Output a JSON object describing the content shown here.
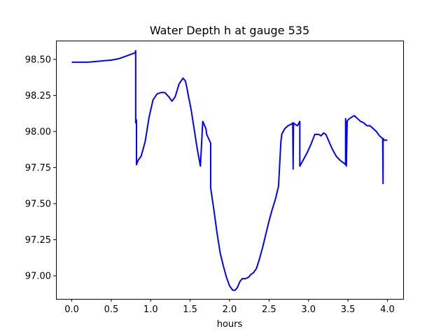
{
  "chart_data": {
    "type": "line",
    "title": "Water Depth h at gauge 535",
    "xlabel": "hours",
    "ylabel": "",
    "xlim": [
      -0.2,
      4.2
    ],
    "ylim": [
      96.84,
      98.63
    ],
    "xticks": [
      0.0,
      0.5,
      1.0,
      1.5,
      2.0,
      2.5,
      3.0,
      3.5,
      4.0
    ],
    "xtick_labels": [
      "0.0",
      "0.5",
      "1.0",
      "1.5",
      "2.0",
      "2.5",
      "3.0",
      "3.5",
      "4.0"
    ],
    "yticks": [
      97.0,
      97.25,
      97.5,
      97.75,
      98.0,
      98.25,
      98.5
    ],
    "ytick_labels": [
      "97.00",
      "97.25",
      "97.50",
      "97.75",
      "98.00",
      "98.25",
      "98.50"
    ],
    "grid": false,
    "line_color": "#0000ff",
    "series": [
      {
        "x": [
          0.0,
          0.1,
          0.2,
          0.3,
          0.4,
          0.5,
          0.6,
          0.65,
          0.7,
          0.75,
          0.8,
          0.81,
          0.81,
          0.815,
          0.815,
          0.82,
          0.82,
          0.84,
          0.88,
          0.93,
          0.98,
          1.03,
          1.08,
          1.13,
          1.18,
          1.23,
          1.27,
          1.31,
          1.36,
          1.41,
          1.44,
          1.46,
          1.48,
          1.51,
          1.55,
          1.59,
          1.63,
          1.66,
          1.7,
          1.71,
          1.76,
          1.76,
          1.8,
          1.84,
          1.88,
          1.92,
          1.96,
          2.0,
          2.04,
          2.07,
          2.1,
          2.13,
          2.16,
          2.2,
          2.24,
          2.27,
          2.3,
          2.34,
          2.38,
          2.42,
          2.46,
          2.5,
          2.54,
          2.58,
          2.62,
          2.65,
          2.66,
          2.66,
          2.7,
          2.74,
          2.78,
          2.8,
          2.805,
          2.805,
          2.81,
          2.81,
          2.83,
          2.86,
          2.88,
          2.89,
          2.89,
          2.93,
          2.98,
          3.03,
          3.08,
          3.13,
          3.16,
          3.19,
          3.22,
          3.26,
          3.3,
          3.35,
          3.4,
          3.45,
          3.47,
          3.47,
          3.475,
          3.475,
          3.48,
          3.48,
          3.49,
          3.49,
          3.5,
          3.52,
          3.55,
          3.58,
          3.62,
          3.66,
          3.7,
          3.74,
          3.78,
          3.82,
          3.86,
          3.9,
          3.94,
          3.945,
          3.945,
          3.95,
          3.95,
          3.97,
          4.0
        ],
        "y": [
          98.48,
          98.48,
          98.48,
          98.485,
          98.49,
          98.495,
          98.505,
          98.515,
          98.525,
          98.535,
          98.545,
          98.56,
          98.06,
          98.08,
          98.07,
          98.08,
          97.77,
          97.8,
          97.83,
          97.93,
          98.1,
          98.22,
          98.26,
          98.27,
          98.27,
          98.24,
          98.21,
          98.24,
          98.33,
          98.37,
          98.35,
          98.3,
          98.24,
          98.16,
          98.02,
          97.88,
          97.76,
          98.07,
          98.02,
          97.98,
          97.92,
          97.61,
          97.46,
          97.3,
          97.16,
          97.07,
          96.99,
          96.93,
          96.9,
          96.9,
          96.92,
          96.96,
          96.98,
          96.98,
          96.99,
          97.01,
          97.02,
          97.05,
          97.12,
          97.2,
          97.29,
          97.38,
          97.46,
          97.53,
          97.62,
          97.93,
          97.97,
          97.98,
          98.02,
          98.04,
          98.05,
          98.06,
          97.76,
          97.74,
          98.05,
          98.06,
          98.05,
          98.04,
          98.06,
          98.07,
          97.76,
          97.8,
          97.85,
          97.91,
          97.98,
          97.98,
          97.97,
          97.99,
          97.98,
          97.93,
          97.88,
          97.83,
          97.8,
          97.78,
          97.77,
          98.09,
          97.8,
          98.05,
          98.07,
          97.76,
          98.07,
          98.07,
          98.08,
          98.09,
          98.1,
          98.11,
          98.09,
          98.07,
          98.06,
          98.04,
          98.04,
          98.02,
          98.0,
          97.97,
          97.95,
          97.64,
          97.95,
          97.95,
          97.94,
          97.94,
          97.94
        ]
      }
    ]
  }
}
